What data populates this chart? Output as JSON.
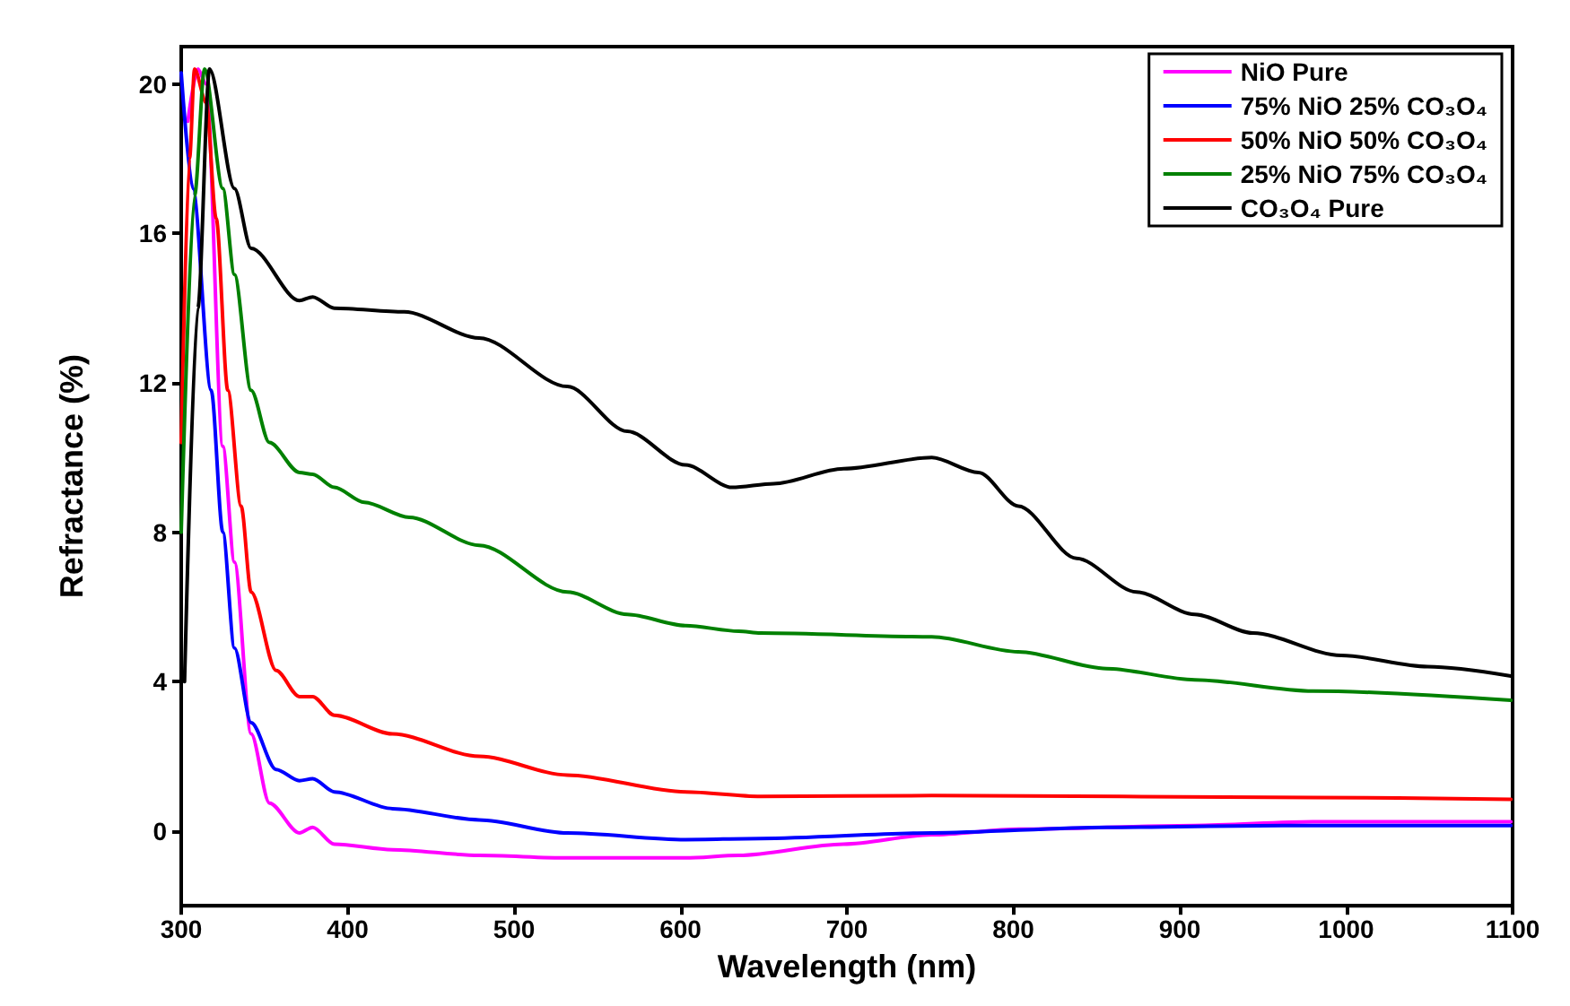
{
  "chart_data": {
    "type": "line",
    "xlabel": "Wavelength (nm)",
    "ylabel": "Refractance (%)",
    "xlim": [
      300,
      1100
    ],
    "xticks": [
      300,
      400,
      500,
      600,
      700,
      800,
      900,
      1000,
      1100
    ],
    "ylim": [
      -2,
      21
    ],
    "yticks": [
      0,
      4,
      8,
      12,
      16,
      20
    ],
    "grid": false,
    "legend": "top right",
    "marker": "none",
    "line_style": "solid",
    "series": [
      {
        "name": "NiO Pure",
        "color": "#ff00ff",
        "x": [
          304,
          310,
          315,
          325,
          332,
          342,
          353,
          371,
          379,
          392,
          427,
          479,
          532,
          603,
          635,
          698,
          751,
          803,
          909,
          980,
          1099
        ],
        "values": [
          19,
          20.4,
          20.0,
          10.3,
          7.2,
          2.6,
          0.75,
          -0.05,
          0.1,
          -0.35,
          -0.5,
          -0.65,
          -0.72,
          -0.72,
          -0.65,
          -0.35,
          -0.1,
          0.05,
          0.15,
          0.25,
          0.25
        ]
      },
      {
        "name": "75% NiO 25% CO₃O₄",
        "color": "#0000ff",
        "x": [
          300,
          307,
          318,
          325,
          332,
          342,
          357,
          371,
          379,
          392,
          427,
          479,
          532,
          603,
          648,
          751,
          856,
          962,
          1099
        ],
        "values": [
          20.3,
          17.2,
          11.8,
          8.0,
          4.9,
          2.9,
          1.65,
          1.35,
          1.4,
          1.05,
          0.6,
          0.3,
          -0.05,
          -0.23,
          -0.2,
          -0.05,
          0.1,
          0.15,
          0.15
        ]
      },
      {
        "name": "50% NiO 50% CO₃O₄",
        "color": "#ff0000",
        "x": [
          300,
          305,
          308,
          315,
          321,
          328,
          336,
          342,
          357,
          371,
          379,
          392,
          427,
          479,
          532,
          603,
          648,
          751,
          980,
          1099
        ],
        "values": [
          10.4,
          18,
          20.4,
          19.5,
          16.4,
          11.8,
          8.7,
          6.4,
          4.3,
          3.6,
          3.6,
          3.1,
          2.6,
          2.0,
          1.5,
          1.05,
          0.93,
          0.95,
          0.9,
          0.85
        ]
      },
      {
        "name": "25% NiO 75% CO₃O₄",
        "color": "#008000",
        "x": [
          300,
          308,
          314,
          325,
          332,
          342,
          353,
          371,
          379,
          392,
          410,
          437,
          479,
          532,
          568,
          603,
          635,
          648,
          751,
          803,
          856,
          909,
          980,
          1099
        ],
        "values": [
          8,
          17,
          20.4,
          17.2,
          14.9,
          11.8,
          10.4,
          9.6,
          9.55,
          9.2,
          8.8,
          8.4,
          7.65,
          6.4,
          5.8,
          5.5,
          5.35,
          5.3,
          5.2,
          4.8,
          4.35,
          4.05,
          3.75,
          3.5
        ]
      },
      {
        "name": "CO₃O₄ Pure",
        "color": "#000000",
        "x": [
          302,
          310,
          317,
          332,
          342,
          371,
          379,
          392,
          434,
          479,
          532,
          568,
          603,
          631,
          656,
          698,
          751,
          779,
          803,
          838,
          874,
          909,
          944,
          997,
          1049,
          1099
        ],
        "values": [
          4.0,
          14,
          20.4,
          17.2,
          15.6,
          14.2,
          14.3,
          14.0,
          13.9,
          13.2,
          11.9,
          10.7,
          9.8,
          9.2,
          9.3,
          9.7,
          10.0,
          9.6,
          8.7,
          7.3,
          6.4,
          5.8,
          5.3,
          4.7,
          4.4,
          4.15
        ]
      }
    ]
  }
}
